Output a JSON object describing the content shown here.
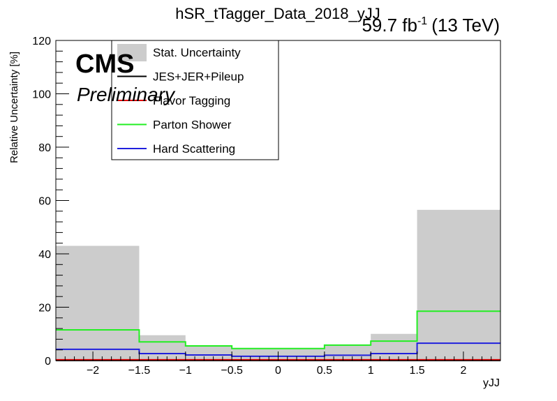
{
  "header": {
    "title": "hSR_tTagger_Data_2018_yJJ",
    "lumi_value": "59.7 fb",
    "lumi_exp": "-1",
    "lumi_energy": "(13 TeV)"
  },
  "labels": {
    "cms": "CMS",
    "preliminary": "Preliminary"
  },
  "chart_data": {
    "type": "histogram",
    "xlabel": "yJJ",
    "ylabel": "Relative Uncertainty [%]",
    "xlim": [
      -2.4,
      2.4
    ],
    "ylim": [
      0,
      120
    ],
    "x_ticks": [
      -2,
      -1.5,
      -1,
      -0.5,
      0,
      0.5,
      1,
      1.5,
      2
    ],
    "x_tick_labels": [
      "−2",
      "−1.5",
      "−1",
      "−0.5",
      "0",
      "0.5",
      "1",
      "1.5",
      "2"
    ],
    "y_ticks": [
      0,
      20,
      40,
      60,
      80,
      100,
      120
    ],
    "y_tick_labels": [
      "0",
      "20",
      "40",
      "60",
      "80",
      "100",
      "120"
    ],
    "bin_edges": [
      -2.4,
      -1.5,
      -1.0,
      -0.5,
      0.5,
      1.0,
      1.5,
      2.4
    ],
    "legend_position": "top-left",
    "series": [
      {
        "name": "Stat. Uncertainty",
        "style": "fill",
        "color": "#cccccc",
        "values": [
          43,
          9.5,
          5.5,
          4.5,
          6,
          10,
          56.5
        ]
      },
      {
        "name": "JES+JER+Pileup",
        "style": "line",
        "color": "#000000",
        "values": [
          0,
          0,
          0,
          0,
          0,
          0,
          0
        ]
      },
      {
        "name": "Flavor Tagging",
        "style": "line",
        "color": "#e00000",
        "values": [
          0.3,
          0.3,
          0.3,
          0.3,
          0.3,
          0.3,
          0.3
        ]
      },
      {
        "name": "Parton Shower",
        "style": "line",
        "color": "#22ee22",
        "values": [
          11.5,
          7,
          5.5,
          4.5,
          5.8,
          7.3,
          18.5
        ]
      },
      {
        "name": "Hard Scattering",
        "style": "line",
        "color": "#2020dd",
        "values": [
          4.2,
          2.6,
          2.1,
          1.6,
          2.0,
          2.6,
          6.5
        ]
      }
    ]
  }
}
